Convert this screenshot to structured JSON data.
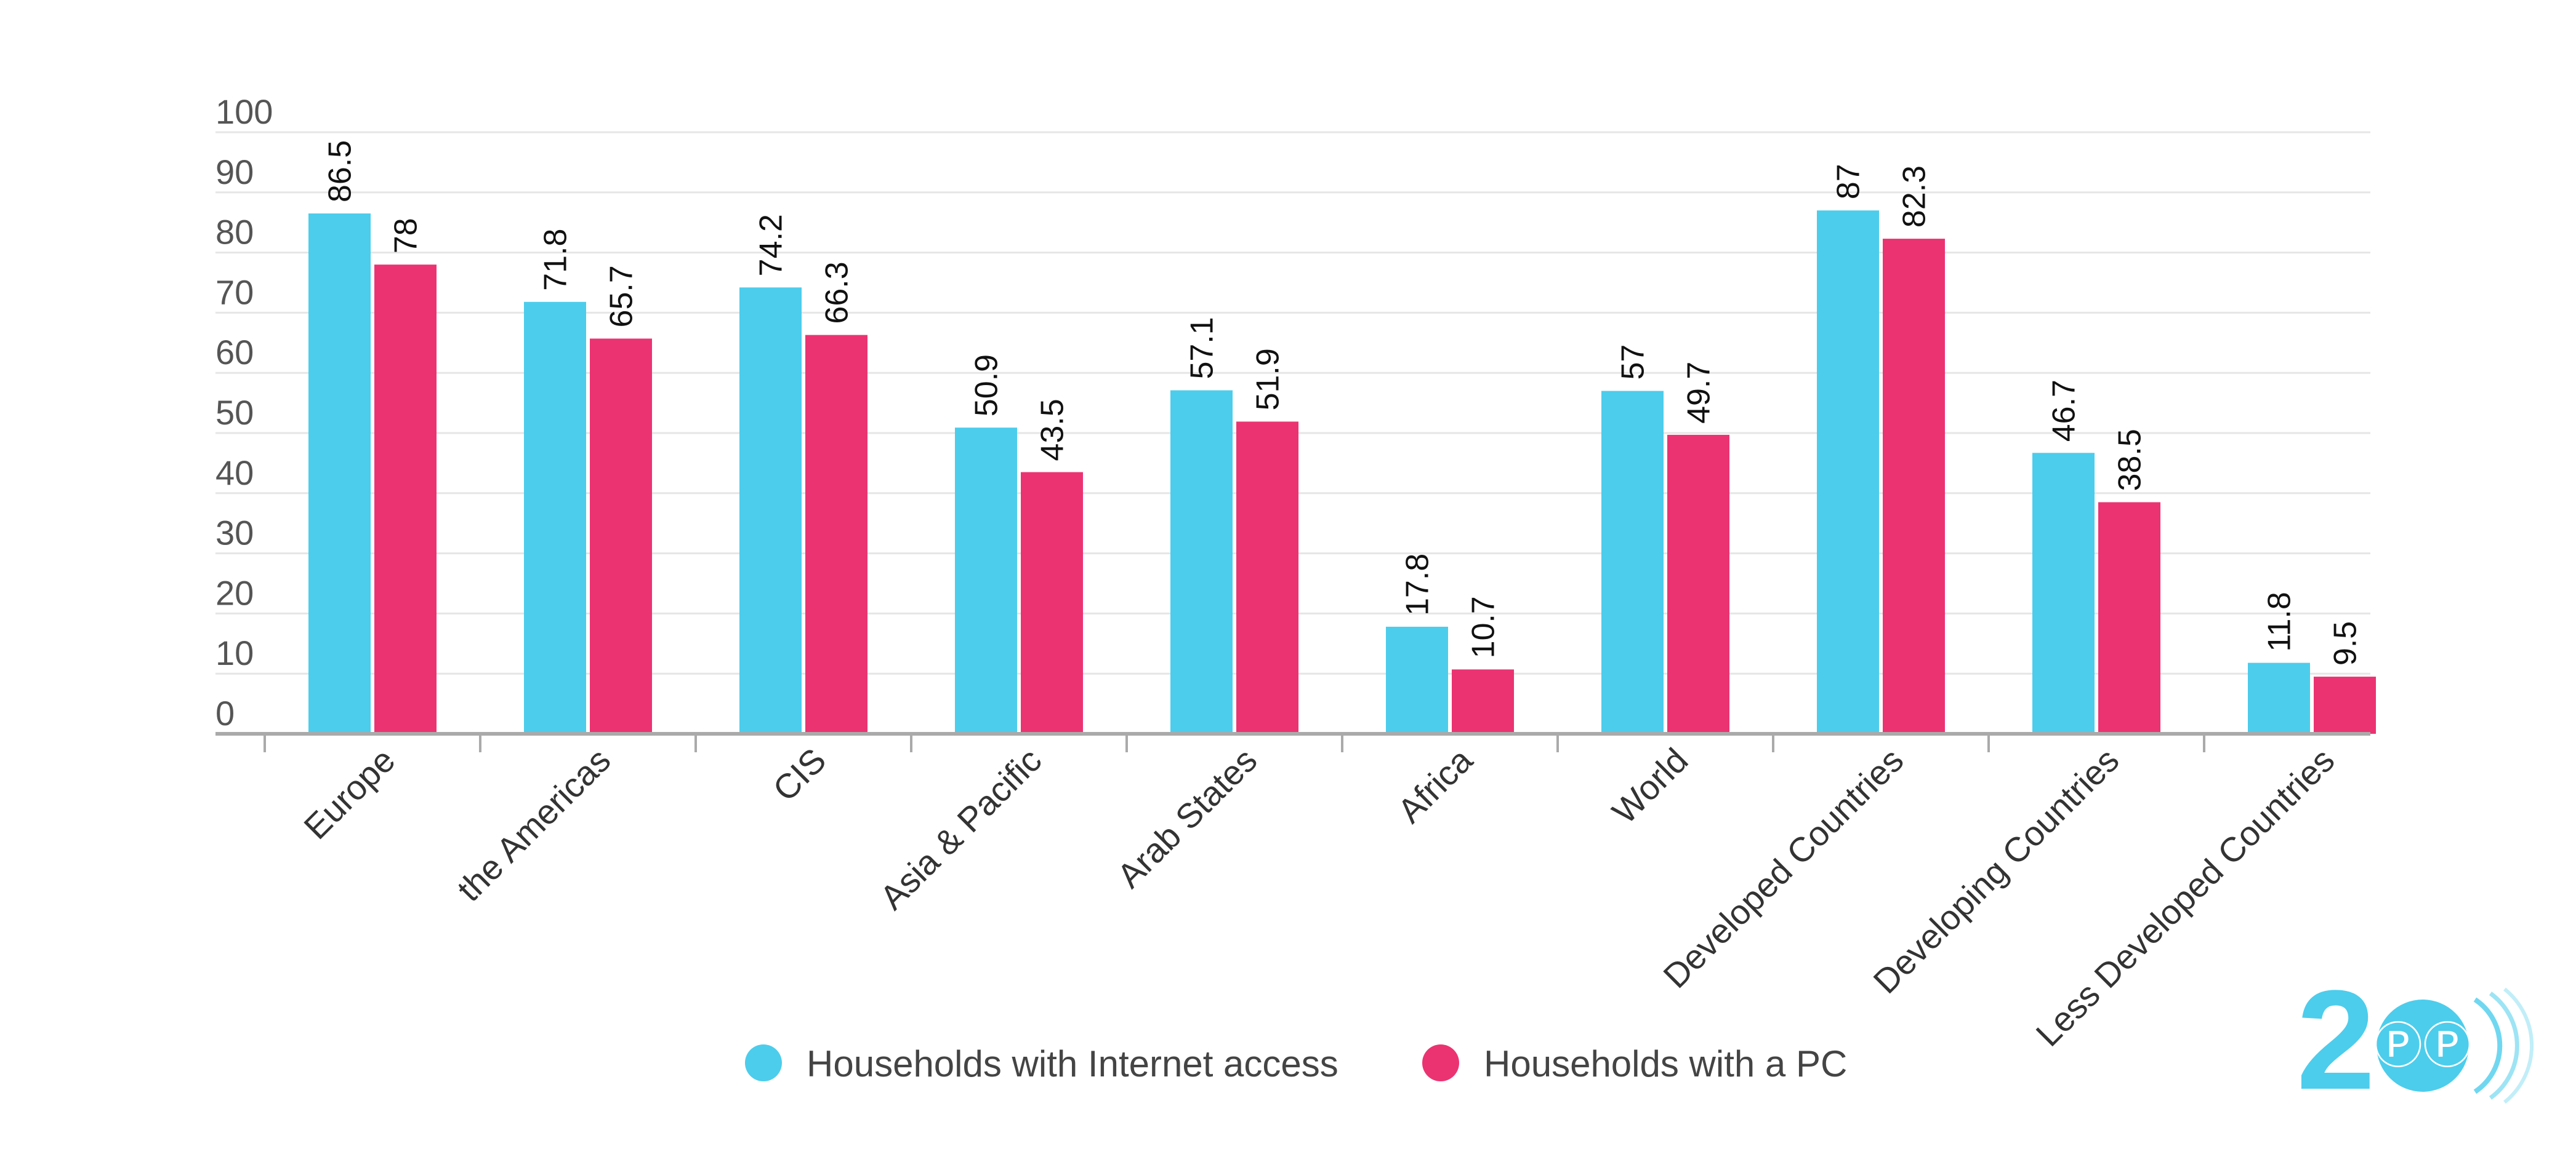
{
  "chart_data": {
    "type": "bar",
    "title": "",
    "xlabel": "",
    "ylabel": "",
    "ylim": [
      0,
      100
    ],
    "yticks": [
      0,
      10,
      20,
      30,
      40,
      50,
      60,
      70,
      80,
      90,
      100
    ],
    "grid": true,
    "legend_position": "bottom-center",
    "categories": [
      "Europe",
      "the Americas",
      "CIS",
      "Asia & Pacific",
      "Arab States",
      "Africa",
      "World",
      "Developed Countries",
      "Developing Countries",
      "Less Developed Countries"
    ],
    "series": [
      {
        "name": "Households with Internet access",
        "color": "#4CCDEC",
        "values": [
          86.5,
          71.8,
          74.2,
          50.9,
          57.1,
          17.8,
          57,
          87,
          46.7,
          11.8
        ]
      },
      {
        "name": "Households with a PC",
        "color": "#EB3372",
        "values": [
          78,
          65.7,
          66.3,
          43.5,
          51.9,
          10.7,
          49.7,
          82.3,
          38.5,
          9.5
        ]
      }
    ]
  },
  "logo": {
    "text": "2",
    "icon": "pp-logo-icon",
    "color": "#4CCDEC"
  }
}
